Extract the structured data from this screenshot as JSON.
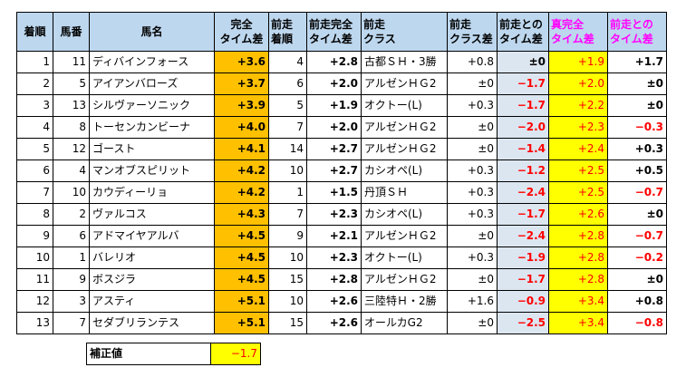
{
  "headers": {
    "rank": "着順",
    "number": "馬番",
    "name": "馬名",
    "kanzen_1": "完全",
    "kanzen_2": "タイム差",
    "zenso_rank_1": "前走",
    "zenso_rank_2": "着順",
    "zenso_kanzen_1": "前走完全",
    "zenso_kanzen_2": "タイム差",
    "zenso_class_1": "前走",
    "zenso_class_2": "クラス",
    "zenso_classdiff_1": "前走",
    "zenso_classdiff_2": "クラス差",
    "zenso_timediff_1": "前走との",
    "zenso_timediff_2": "タイム差",
    "shin_1": "真完全",
    "shin_2": "タイム差",
    "zd_1": "前走との",
    "zd_2": "タイム差"
  },
  "rows": [
    {
      "rank": "1",
      "number": "11",
      "name": "ディバインフォース",
      "kanzen": "+3.6",
      "zenso_rank": "4",
      "zenso_kanzen": "+2.8",
      "zenso_class": "古都ＳＨ・3勝",
      "class_diff": "+0.8",
      "zenso_diff": "±0",
      "zenso_diff_neg": false,
      "shin": "+1.9",
      "zd": "+1.7",
      "zd_neg": false
    },
    {
      "rank": "2",
      "number": "5",
      "name": "アイアンバローズ",
      "kanzen": "+3.7",
      "zenso_rank": "6",
      "zenso_kanzen": "+2.0",
      "zenso_class": "アルゼンＨＧ2",
      "class_diff": "±0",
      "zenso_diff": "−1.7",
      "zenso_diff_neg": true,
      "shin": "+2.0",
      "zd": "±0",
      "zd_neg": false
    },
    {
      "rank": "3",
      "number": "13",
      "name": "シルヴァーソニック",
      "kanzen": "+3.9",
      "zenso_rank": "5",
      "zenso_kanzen": "+1.9",
      "zenso_class": "オクトー(L)",
      "class_diff": "+0.3",
      "zenso_diff": "−1.7",
      "zenso_diff_neg": true,
      "shin": "+2.2",
      "zd": "±0",
      "zd_neg": false
    },
    {
      "rank": "4",
      "number": "8",
      "name": "トーセンカンビーナ",
      "kanzen": "+4.0",
      "zenso_rank": "7",
      "zenso_kanzen": "+2.0",
      "zenso_class": "アルゼンＨＧ2",
      "class_diff": "±0",
      "zenso_diff": "−2.0",
      "zenso_diff_neg": true,
      "shin": "+2.3",
      "zd": "−0.3",
      "zd_neg": true
    },
    {
      "rank": "5",
      "number": "12",
      "name": "ゴースト",
      "kanzen": "+4.1",
      "zenso_rank": "14",
      "zenso_kanzen": "+2.7",
      "zenso_class": "アルゼンＨＧ2",
      "class_diff": "±0",
      "zenso_diff": "−1.4",
      "zenso_diff_neg": true,
      "shin": "+2.4",
      "zd": "+0.3",
      "zd_neg": false
    },
    {
      "rank": "6",
      "number": "4",
      "name": "マンオブスピリット",
      "kanzen": "+4.2",
      "zenso_rank": "10",
      "zenso_kanzen": "+2.7",
      "zenso_class": "カシオペ(L)",
      "class_diff": "+0.3",
      "zenso_diff": "−1.2",
      "zenso_diff_neg": true,
      "shin": "+2.5",
      "zd": "+0.5",
      "zd_neg": false
    },
    {
      "rank": "7",
      "number": "10",
      "name": "カウディーリョ",
      "kanzen": "+4.2",
      "zenso_rank": "1",
      "zenso_kanzen": "+1.5",
      "zenso_class": "丹頂ＳＨ",
      "class_diff": "+0.3",
      "zenso_diff": "−2.4",
      "zenso_diff_neg": true,
      "shin": "+2.5",
      "zd": "−0.7",
      "zd_neg": true
    },
    {
      "rank": "8",
      "number": "2",
      "name": "ヴァルコス",
      "kanzen": "+4.3",
      "zenso_rank": "7",
      "zenso_kanzen": "+2.3",
      "zenso_class": "カシオペ(L)",
      "class_diff": "+0.3",
      "zenso_diff": "−1.7",
      "zenso_diff_neg": true,
      "shin": "+2.6",
      "zd": "±0",
      "zd_neg": false
    },
    {
      "rank": "9",
      "number": "6",
      "name": "アドマイヤアルバ",
      "kanzen": "+4.5",
      "zenso_rank": "9",
      "zenso_kanzen": "+2.1",
      "zenso_class": "アルゼンＨＧ2",
      "class_diff": "±0",
      "zenso_diff": "−2.4",
      "zenso_diff_neg": true,
      "shin": "+2.8",
      "zd": "−0.7",
      "zd_neg": true
    },
    {
      "rank": "10",
      "number": "1",
      "name": "バレリオ",
      "kanzen": "+4.5",
      "zenso_rank": "10",
      "zenso_kanzen": "+2.3",
      "zenso_class": "オクトー(L)",
      "class_diff": "+0.3",
      "zenso_diff": "−1.9",
      "zenso_diff_neg": true,
      "shin": "+2.8",
      "zd": "−0.2",
      "zd_neg": true
    },
    {
      "rank": "11",
      "number": "9",
      "name": "ボスジラ",
      "kanzen": "+4.5",
      "zenso_rank": "15",
      "zenso_kanzen": "+2.8",
      "zenso_class": "アルゼンＨＧ2",
      "class_diff": "±0",
      "zenso_diff": "−1.7",
      "zenso_diff_neg": true,
      "shin": "+2.8",
      "zd": "±0",
      "zd_neg": false
    },
    {
      "rank": "12",
      "number": "3",
      "name": "アスティ",
      "kanzen": "+5.1",
      "zenso_rank": "10",
      "zenso_kanzen": "+2.6",
      "zenso_class": "三陸特Ｈ・2勝",
      "class_diff": "+1.6",
      "zenso_diff": "−0.9",
      "zenso_diff_neg": true,
      "shin": "+3.4",
      "zd": "+0.8",
      "zd_neg": false
    },
    {
      "rank": "13",
      "number": "7",
      "name": "セダブリランテス",
      "kanzen": "+5.1",
      "zenso_rank": "15",
      "zenso_kanzen": "+2.6",
      "zenso_class": "オールカG2",
      "class_diff": "±0",
      "zenso_diff": "−2.5",
      "zenso_diff_neg": true,
      "shin": "+3.4",
      "zd": "−0.8",
      "zd_neg": true
    }
  ],
  "correction": {
    "label": "補正値",
    "value": "−1.7"
  }
}
